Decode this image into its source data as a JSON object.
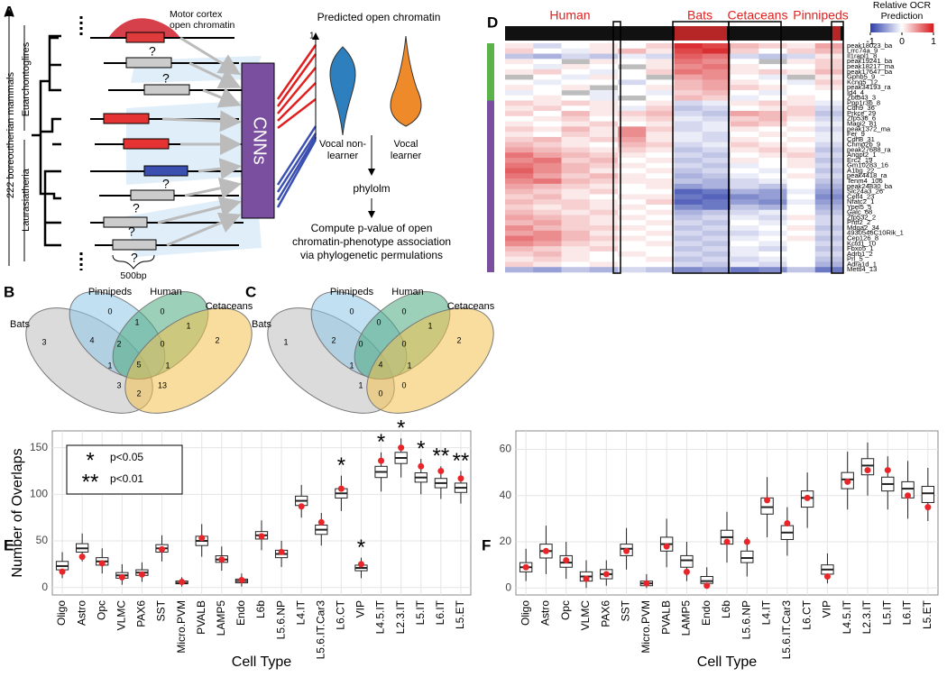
{
  "panel_labels": [
    "A",
    "B",
    "C",
    "D",
    "E",
    "F"
  ],
  "panel_a": {
    "motor_cortex": [
      "Motor cortex",
      "open chromatin"
    ],
    "clade_top": "Euarchontoglires",
    "clade_bottom": "Laurasiatheria",
    "mammals": "222 boreoutherian mammals",
    "unknown": [
      "?",
      "?",
      "?",
      "?",
      "?",
      "?"
    ],
    "scale": "500bp",
    "model": "CNNs",
    "predicted": "Predicted open chromatin",
    "axis_max": "1",
    "vocal_non_learner": [
      "Vocal non-",
      "learner"
    ],
    "vocal_learner": [
      "Vocal",
      "learner"
    ],
    "phylolm": "phylolm",
    "compute": [
      "Compute p-value of open",
      "chromatin-phenotype association",
      "via phylogenetic permulations"
    ]
  },
  "venns": [
    {
      "sets": [
        "Bats",
        "Pinnipeds",
        "Human",
        "Cetaceans"
      ],
      "counts": [
        3,
        0,
        0,
        2,
        4,
        1,
        1,
        2,
        0,
        2,
        1,
        1,
        5,
        3,
        13
      ]
    },
    {
      "sets": [
        "Bats",
        "Pinnipeds",
        "Human",
        "Cetaceans"
      ],
      "counts": [
        1,
        0,
        0,
        2,
        2,
        0,
        1,
        0,
        0,
        0,
        1,
        1,
        4,
        1,
        0
      ]
    }
  ],
  "heatmap": {
    "group_labels": [
      "Human",
      "Bats",
      "Cetaceans",
      "Pinnipeds"
    ],
    "colorbar_title": [
      "Relative OCR",
      "Prediction"
    ],
    "colorbar_ticks": [
      -1,
      0,
      1
    ],
    "group_sizes": [
      11,
      33
    ],
    "group_colors": [
      "#5ab34a",
      "#7b4fa0"
    ],
    "rows": [
      "peak18023_ba",
      "Lrrc74a_9",
      "Il1rapl1_8",
      "peak19241_ba",
      "peak18217_ma",
      "peak17647_ba",
      "Gphb5_9",
      "Kcnq5_12",
      "peak34193_ra",
      "Id4_4",
      "Zbtb43_3",
      "Ppp1r3b_8",
      "Cdh9_36",
      "Prkce_29",
      "Zfp536_6",
      "Magi2_81",
      "peak1372_ma",
      "Fer_9",
      "Cdh8_31",
      "Chmp2b_9",
      "peak27688_ra",
      "Angpt2_1",
      "Erc2_19",
      "Gm10283_16",
      "A1bg_22",
      "peak4418_ra",
      "Tenm4_106",
      "peak24830_ba",
      "Slc24a3_26",
      "Celf4_23",
      "Nfatc2_1",
      "Ypel5_5",
      "Galc_68",
      "Zfp532_2",
      "Phtf2_2",
      "Mdga2_34",
      "4930546C10Rik_1",
      "Cep126_8",
      "Kctd1_10",
      "Fbxo5_1",
      "Adrb1_2",
      "Prl_5",
      "Adra1d_1",
      "Mettl4_13"
    ],
    "values": [
      [
        0.1,
        -0.2,
        0,
        0.1,
        0,
        0.2,
        0.9,
        0.8,
        0.3,
        0.2,
        0.1,
        0.4
      ],
      [
        0.2,
        0,
        -0.1,
        0.1,
        0.3,
        0.1,
        0.8,
        0.9,
        0.2,
        0,
        0.2,
        0.3
      ],
      [
        -0.3,
        -0.4,
        -0.2,
        -0.3,
        -0.1,
        -0.2,
        0.7,
        0.6,
        -0.2,
        -0.3,
        -0.2,
        0.1
      ],
      [
        0.1,
        0,
        null,
        0.1,
        0,
        0.1,
        0.6,
        0.5,
        0,
        null,
        0.1,
        0.2
      ],
      [
        0,
        -0.1,
        0.1,
        0,
        null,
        0.1,
        0.5,
        0.6,
        0.1,
        0,
        0,
        0.2
      ],
      [
        0.1,
        0.2,
        0,
        -0.1,
        0,
        0.2,
        0.6,
        0.5,
        0.1,
        0.2,
        0.1,
        0.3
      ],
      [
        null,
        0,
        -0.1,
        0.1,
        0,
        null,
        0.4,
        0.5,
        0,
        -0.1,
        null,
        0.1
      ],
      [
        0,
        -0.1,
        0,
        0,
        -0.2,
        0,
        0.3,
        0.4,
        0.1,
        0,
        -0.1,
        0.2
      ],
      [
        0.1,
        0,
        0.1,
        null,
        0,
        0.1,
        0.3,
        0.4,
        0.2,
        0.1,
        0,
        0.1
      ],
      [
        -0.1,
        0,
        null,
        -0.1,
        0,
        -0.1,
        0.2,
        0.3,
        0,
        -0.1,
        0,
        0
      ],
      [
        0,
        0.1,
        0,
        -0.1,
        null,
        0,
        0.3,
        0.2,
        -0.1,
        0,
        0.1,
        0
      ],
      [
        0.2,
        0.1,
        0.2,
        0.1,
        0,
        0.1,
        -0.2,
        -0.1,
        0.1,
        0.2,
        0.1,
        -0.1
      ],
      [
        0.1,
        0.2,
        0,
        0.1,
        -0.1,
        0.2,
        -0.3,
        -0.2,
        0,
        0.1,
        0.2,
        -0.2
      ],
      [
        0.2,
        0,
        0.3,
        0.1,
        0.2,
        0.3,
        -0.2,
        -0.3,
        0.4,
        0.3,
        0.2,
        -0.3
      ],
      [
        0,
        0.1,
        0.2,
        0,
        0.1,
        0.2,
        -0.1,
        -0.2,
        0.2,
        0.3,
        0.1,
        -0.2
      ],
      [
        0.1,
        0,
        0.1,
        0.2,
        0,
        0.1,
        -0.2,
        -0.1,
        0.3,
        0.2,
        0,
        -0.1
      ],
      [
        0.2,
        0.1,
        0.3,
        0.1,
        0.5,
        0.2,
        -0.2,
        -0.1,
        0.1,
        0,
        0.1,
        -0.2
      ],
      [
        0.1,
        0,
        0.2,
        0.1,
        0.5,
        0.1,
        -0.1,
        -0.2,
        0,
        0.1,
        0,
        -0.1
      ],
      [
        0.2,
        0.3,
        0.1,
        0.2,
        0.4,
        0.1,
        -0.1,
        -0.2,
        0.1,
        0,
        0.1,
        -0.1
      ],
      [
        0.3,
        0.2,
        0.1,
        0,
        0.3,
        0.2,
        -0.2,
        -0.1,
        0.2,
        0.1,
        0,
        -0.2
      ],
      [
        0.4,
        0.3,
        0.2,
        0.1,
        0.2,
        0.1,
        -0.3,
        -0.2,
        0.1,
        0.2,
        0.1,
        -0.3
      ],
      [
        0.6,
        0.4,
        0.3,
        0.2,
        0.1,
        0,
        -0.2,
        -0.3,
        0,
        0.1,
        0.2,
        -0.2
      ],
      [
        0.5,
        0.6,
        0.2,
        0.3,
        0,
        0.1,
        -0.3,
        -0.2,
        0.1,
        0,
        0.1,
        -0.3
      ],
      [
        0.6,
        0.5,
        0.3,
        0.2,
        0.1,
        0,
        -0.2,
        -0.3,
        -0.1,
        0,
        0.1,
        -0.2
      ],
      [
        0.7,
        0.5,
        0.3,
        0.1,
        0,
        0.1,
        -0.3,
        -0.2,
        0,
        -0.1,
        0,
        -0.3
      ],
      [
        0.6,
        0.4,
        0.2,
        0.3,
        0.1,
        0,
        -0.4,
        -0.3,
        -0.1,
        0,
        0.1,
        -0.2
      ],
      [
        0.5,
        0.6,
        0.3,
        0.2,
        0.1,
        0.1,
        -0.3,
        -0.4,
        -0.2,
        -0.1,
        0,
        -0.3
      ],
      [
        0.4,
        0.3,
        0.2,
        0.1,
        0,
        0.1,
        -0.5,
        -0.4,
        -0.2,
        -0.3,
        0,
        -0.4
      ],
      [
        0.3,
        0.2,
        0.1,
        0.2,
        0,
        0,
        -0.8,
        -0.7,
        -0.4,
        -0.5,
        -0.1,
        -0.5
      ],
      [
        0.2,
        0.3,
        0.1,
        0,
        0.1,
        0.1,
        -0.7,
        -0.8,
        -0.6,
        -0.5,
        0,
        -0.6
      ],
      [
        0.3,
        0.2,
        0.2,
        0.1,
        0,
        0.2,
        -0.8,
        -0.7,
        -0.5,
        -0.6,
        -0.1,
        -0.5
      ],
      [
        0.2,
        0.1,
        0.2,
        0.1,
        0.1,
        0,
        -0.6,
        -0.7,
        -0.3,
        -0.4,
        0,
        -0.4
      ],
      [
        0.3,
        0.2,
        0.1,
        0.2,
        0,
        0.1,
        -0.4,
        -0.3,
        -0.2,
        -0.1,
        0,
        -0.3
      ],
      [
        0.4,
        0.3,
        0.2,
        0.1,
        0.1,
        0,
        -0.3,
        -0.2,
        -0.1,
        -0.2,
        0.1,
        -0.2
      ],
      [
        0.3,
        0.4,
        0.2,
        0.1,
        0,
        0.1,
        -0.2,
        -0.3,
        0,
        -0.1,
        0,
        -0.2
      ],
      [
        0.5,
        0.3,
        0.2,
        0.2,
        0.1,
        0,
        -0.3,
        -0.2,
        -0.1,
        0,
        0.1,
        -0.3
      ],
      [
        0.4,
        0.5,
        0.3,
        0.1,
        0,
        0.1,
        -0.2,
        -0.3,
        -0.2,
        -0.1,
        0,
        -0.2
      ],
      [
        0.6,
        0.5,
        0.3,
        0.2,
        0.1,
        0,
        -0.3,
        -0.2,
        -0.1,
        0,
        0.1,
        -0.3
      ],
      [
        0.5,
        0.4,
        0.2,
        0.1,
        0,
        0.1,
        -0.2,
        -0.3,
        0,
        -0.1,
        0,
        -0.2
      ],
      [
        0.3,
        0.2,
        0.1,
        0.2,
        0,
        0,
        -0.3,
        -0.2,
        -0.1,
        -0.2,
        0,
        -0.3
      ],
      [
        0.2,
        0.3,
        0.1,
        0,
        0.1,
        0,
        -0.2,
        -0.3,
        -0.1,
        0,
        0,
        -0.2
      ],
      [
        0.1,
        0.2,
        0.1,
        0,
        0,
        0.1,
        -0.3,
        -0.2,
        -0.2,
        -0.1,
        0,
        -0.3
      ],
      [
        0.2,
        0.1,
        0,
        0.1,
        0,
        0,
        -0.2,
        -0.3,
        -0.1,
        -0.2,
        0,
        -0.4
      ],
      [
        -0.4,
        -0.5,
        -0.3,
        -0.4,
        -0.2,
        -0.3,
        -0.6,
        -0.5,
        -0.7,
        -0.6,
        -0.3,
        -0.7
      ]
    ]
  },
  "boxplots": {
    "ylabel": "Number of Overlaps",
    "xlabel": "Cell Type",
    "categories": [
      "Oligo",
      "Astro",
      "Opc",
      "VLMC",
      "PAX6",
      "SST",
      "Micro.PVM",
      "PVALB",
      "LAMP5",
      "Endo",
      "L6b",
      "L5.6.NP",
      "L4.IT",
      "L5.6.IT.Car3",
      "L6.CT",
      "VIP",
      "L4.5.IT",
      "L2.3.IT",
      "L5.IT",
      "L6.IT",
      "L5.ET"
    ],
    "legend": [
      {
        "symbol": "*",
        "text": "p<0.05"
      },
      {
        "symbol": "**",
        "text": "p<0.01"
      }
    ],
    "panels": [
      {
        "ylim": [
          -8,
          168
        ],
        "yticks": [
          0,
          50,
          100,
          150
        ],
        "whisker_low": [
          10,
          28,
          15,
          3,
          6,
          28,
          1,
          33,
          18,
          1,
          40,
          22,
          75,
          45,
          82,
          10,
          103,
          118,
          100,
          95,
          90
        ],
        "q1": [
          19,
          38,
          24,
          10,
          13,
          38,
          4,
          45,
          27,
          5,
          52,
          32,
          88,
          57,
          96,
          18,
          118,
          133,
          113,
          107,
          102
        ],
        "median": [
          23,
          42,
          28,
          13,
          16,
          42,
          5,
          50,
          30,
          7,
          56,
          36,
          93,
          62,
          101,
          21,
          124,
          139,
          118,
          112,
          107
        ],
        "q3": [
          28,
          47,
          32,
          16,
          19,
          46,
          7,
          55,
          34,
          9,
          60,
          40,
          98,
          67,
          106,
          24,
          130,
          145,
          123,
          117,
          112
        ],
        "whisker_high": [
          38,
          58,
          42,
          25,
          27,
          56,
          11,
          68,
          44,
          15,
          72,
          50,
          110,
          80,
          120,
          32,
          145,
          160,
          138,
          130,
          125
        ],
        "observed": [
          17,
          33,
          26,
          11,
          14,
          41,
          6,
          53,
          30,
          8,
          55,
          38,
          87,
          70,
          106,
          25,
          136,
          150,
          130,
          125,
          117
        ],
        "significance": [
          null,
          null,
          null,
          null,
          null,
          null,
          null,
          null,
          null,
          null,
          null,
          null,
          null,
          null,
          "*",
          "*",
          "*",
          "*",
          "*",
          "**",
          "**"
        ]
      },
      {
        "ylim": [
          -3,
          68
        ],
        "yticks": [
          0,
          20,
          40,
          60
        ],
        "whisker_low": [
          3,
          6,
          4,
          0,
          1,
          8,
          0,
          9,
          3,
          0,
          11,
          5,
          22,
          14,
          26,
          2,
          34,
          40,
          34,
          30,
          29
        ],
        "q1": [
          7,
          13,
          9,
          3,
          4,
          14,
          1,
          16,
          9,
          2,
          19,
          11,
          32,
          21,
          35,
          6,
          43,
          49,
          42,
          39,
          37
        ],
        "median": [
          9,
          16,
          11,
          5,
          6,
          17,
          2,
          19,
          12,
          3,
          22,
          13,
          35,
          24,
          39,
          8,
          47,
          53,
          45,
          43,
          41
        ],
        "q3": [
          11,
          19,
          14,
          7,
          8,
          19,
          3,
          22,
          14,
          5,
          25,
          16,
          39,
          27,
          42,
          10,
          50,
          56,
          48,
          46,
          44
        ],
        "whisker_high": [
          17,
          27,
          20,
          12,
          12,
          26,
          6,
          30,
          20,
          9,
          33,
          22,
          48,
          35,
          50,
          15,
          59,
          63,
          57,
          55,
          52
        ],
        "observed": [
          9,
          16,
          12,
          4,
          6,
          16,
          2,
          18,
          7,
          1,
          20,
          20,
          38,
          28,
          39,
          5,
          46,
          51,
          51,
          40,
          35
        ]
      }
    ]
  }
}
